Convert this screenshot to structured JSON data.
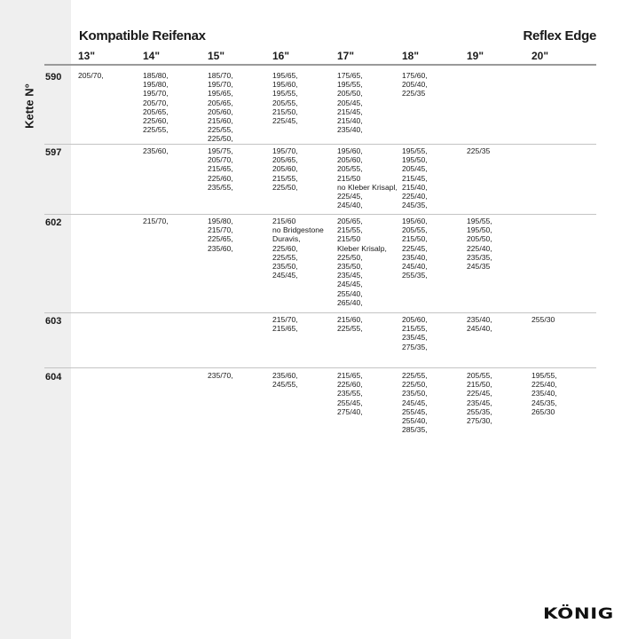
{
  "header": {
    "title": "Kompatible Reifenax",
    "product": "Reflex Edge",
    "row_axis_label": "Kette N°"
  },
  "columns": [
    "13\"",
    "14\"",
    "15\"",
    "16\"",
    "17\"",
    "18\"",
    "19\"",
    "20\""
  ],
  "rows": [
    {
      "chain": "590",
      "cells": [
        [
          "205/70,"
        ],
        [
          "185/80,",
          "195/80,",
          "195/70,",
          "205/70,",
          "205/65,",
          "225/60,",
          "225/55,"
        ],
        [
          "185/70,",
          "195/70,",
          "195/65,",
          "205/65,",
          "205/60,",
          "215/60,",
          "225/55,",
          "225/50,"
        ],
        [
          "195/65,",
          "195/60,",
          "195/55,",
          "205/55,",
          "215/50,",
          "225/45,"
        ],
        [
          "175/65,",
          "195/55,",
          "205/50,",
          "205/45,",
          "215/45,",
          "215/40,",
          "235/40,"
        ],
        [
          "175/60,",
          "205/40,",
          "225/35"
        ],
        [],
        []
      ]
    },
    {
      "chain": "597",
      "cells": [
        [],
        [
          "235/60,"
        ],
        [
          "195/75,",
          "205/70,",
          "215/65,",
          "225/60,",
          "235/55,"
        ],
        [
          "195/70,",
          "205/65,",
          "205/60,",
          "215/55,",
          "225/50,"
        ],
        [
          "195/60,",
          "205/60,",
          "205/55,",
          "215/50",
          "no Kleber Krisapl,",
          "225/45,",
          "245/40,"
        ],
        [
          "195/55,",
          "195/50,",
          "205/45,",
          "215/45,",
          "215/40,",
          "225/40,",
          "245/35,"
        ],
        [
          "225/35"
        ],
        []
      ]
    },
    {
      "chain": "602",
      "cells": [
        [],
        [
          "215/70,"
        ],
        [
          "195/80,",
          "215/70,",
          "225/65,",
          "235/60,"
        ],
        [
          "215/60",
          "no Bridgestone",
          "Duravis,",
          "225/60,",
          "225/55,",
          "235/50,",
          "245/45,"
        ],
        [
          "205/65,",
          "215/55,",
          "215/50",
          "Kleber Krisalp,",
          "225/50,",
          "235/50,",
          "235/45,",
          "245/45,",
          "255/40,",
          "265/40,"
        ],
        [
          "195/60,",
          "205/55,",
          "215/50,",
          "225/45,",
          "235/40,",
          "245/40,",
          "255/35,"
        ],
        [
          "195/55,",
          "195/50,",
          "205/50,",
          "225/40,",
          "235/35,",
          "245/35"
        ],
        []
      ]
    },
    {
      "chain": "603",
      "cells": [
        [],
        [],
        [],
        [
          "215/70,",
          "215/65,"
        ],
        [
          "215/60,",
          "225/55,"
        ],
        [
          "205/60,",
          "215/55,",
          "235/45,",
          "275/35,"
        ],
        [
          "235/40,",
          "245/40,"
        ],
        [
          "255/30"
        ]
      ]
    },
    {
      "chain": "604",
      "cells": [
        [],
        [],
        [
          "235/70,"
        ],
        [
          "235/60,",
          "245/55,"
        ],
        [
          "215/65,",
          "225/60,",
          "235/55,",
          "255/45,",
          "275/40,"
        ],
        [
          "225/55,",
          "225/50,",
          "235/50,",
          "245/45,",
          "255/45,",
          "255/40,",
          "285/35,"
        ],
        [
          "205/55,",
          "215/50,",
          "225/45,",
          "235/45,",
          "255/35,",
          "275/30,"
        ],
        [
          "195/55,",
          "225/40,",
          "235/40,",
          "245/35,",
          "265/30"
        ]
      ]
    }
  ],
  "logo": {
    "text": "KÖNIG"
  }
}
